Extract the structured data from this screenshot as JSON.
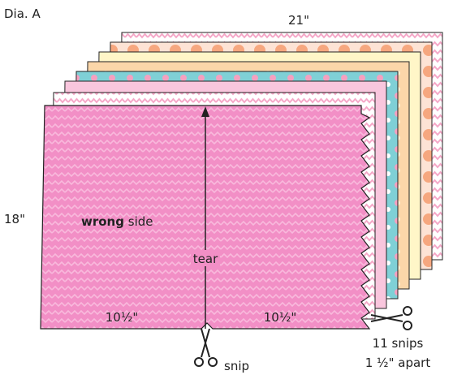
{
  "title": "Dia. A",
  "labels": {
    "width": "21\"",
    "height": "18\"",
    "side_bold": "wrong",
    "side_rest": "side",
    "tear": "tear",
    "left_half": "10½\"",
    "right_half": "10½\"",
    "snip": "snip",
    "snips_count": "11 snips",
    "snips_spacing": "1 ½\" apart"
  }
}
